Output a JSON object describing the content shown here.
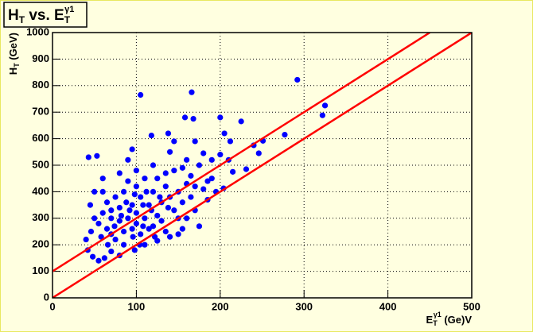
{
  "chart_data": {
    "type": "scatter",
    "title": [
      "H",
      "T",
      " vs. E",
      "T",
      "γ1"
    ],
    "x_label": [
      "E",
      "T",
      "γ1",
      " (Ge)V"
    ],
    "y_label": [
      "H",
      "T",
      " (GeV)"
    ],
    "xlim": [
      0,
      500
    ],
    "ylim": [
      0,
      1000
    ],
    "xticks": [
      0,
      100,
      200,
      300,
      400,
      500
    ],
    "yticks": [
      0,
      100,
      200,
      300,
      400,
      500,
      600,
      700,
      800,
      900,
      1000
    ],
    "grid": true,
    "series": [
      {
        "color": "#0000ff",
        "x": [
          105,
          166,
          292,
          325,
          322,
          277,
          251,
          246,
          231,
          204,
          225,
          200,
          158,
          168,
          205,
          212,
          240,
          200,
          180,
          170,
          145,
          138,
          118,
          95,
          90,
          53,
          43,
          46,
          40,
          42,
          48,
          55,
          62,
          70,
          80,
          98,
          110,
          125,
          140,
          155,
          170,
          185,
          195,
          190,
          175,
          160,
          140,
          120,
          100,
          80,
          60,
          50,
          45,
          50,
          55,
          60,
          65,
          70,
          75,
          85,
          90,
          95,
          100,
          105,
          110,
          115,
          120,
          125,
          130,
          135,
          140,
          145,
          150,
          155,
          160,
          165,
          75,
          80,
          85,
          70,
          65,
          60,
          90,
          100,
          110,
          120,
          130,
          95,
          85,
          105,
          115,
          125,
          135,
          145,
          150,
          100,
          80,
          70,
          88,
          92,
          98,
          108,
          112,
          118,
          128,
          138,
          58,
          66,
          74,
          82,
          96,
          104,
          170,
          180,
          165,
          155,
          185,
          190,
          210,
          215,
          175,
          160,
          150,
          135,
          122,
          108
        ],
        "y": [
          765,
          775,
          822,
          725,
          688,
          615,
          592,
          545,
          485,
          413,
          665,
          680,
          680,
          675,
          620,
          590,
          575,
          540,
          545,
          590,
          590,
          620,
          612,
          560,
          520,
          535,
          530,
          250,
          220,
          180,
          155,
          140,
          150,
          175,
          160,
          180,
          200,
          215,
          230,
          260,
          330,
          370,
          400,
          450,
          500,
          520,
          550,
          500,
          480,
          470,
          450,
          400,
          350,
          300,
          280,
          320,
          260,
          240,
          220,
          250,
          300,
          350,
          320,
          380,
          300,
          350,
          400,
          310,
          360,
          420,
          380,
          330,
          400,
          360,
          430,
          380,
          380,
          340,
          400,
          300,
          360,
          400,
          440,
          420,
          450,
          270,
          290,
          260,
          200,
          240,
          260,
          450,
          470,
          480,
          300,
          280,
          290,
          330,
          360,
          330,
          390,
          350,
          400,
          330,
          380,
          340,
          230,
          200,
          270,
          310,
          230,
          200,
          420,
          410,
          460,
          490,
          440,
          520,
          520,
          475,
          270,
          300,
          240,
          250,
          230,
          270
        ]
      }
    ],
    "lines": [
      {
        "color": "#ff0000",
        "x": [
          0,
          450
        ],
        "y": [
          100,
          1000
        ]
      },
      {
        "color": "#ff0000",
        "x": [
          0,
          500
        ],
        "y": [
          0,
          1000
        ]
      }
    ]
  }
}
